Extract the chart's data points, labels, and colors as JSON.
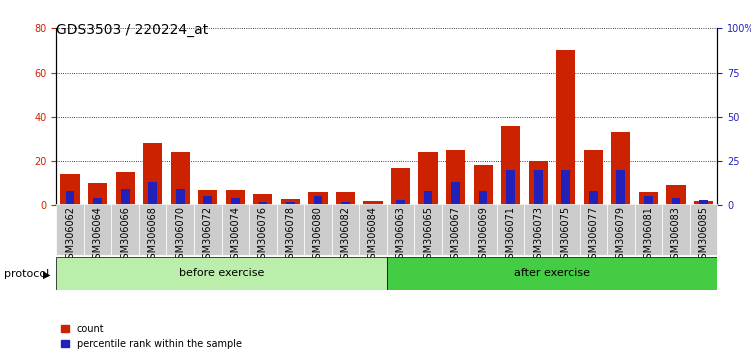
{
  "title": "GDS3503 / 220224_at",
  "categories": [
    "GSM306062",
    "GSM306064",
    "GSM306066",
    "GSM306068",
    "GSM306070",
    "GSM306072",
    "GSM306074",
    "GSM306076",
    "GSM306078",
    "GSM306080",
    "GSM306082",
    "GSM306084",
    "GSM306063",
    "GSM306065",
    "GSM306067",
    "GSM306069",
    "GSM306071",
    "GSM306073",
    "GSM306075",
    "GSM306077",
    "GSM306079",
    "GSM306081",
    "GSM306083",
    "GSM306085"
  ],
  "count_values": [
    14,
    10,
    15,
    28,
    24,
    7,
    7,
    5,
    3,
    6,
    6,
    2,
    17,
    24,
    25,
    18,
    36,
    20,
    70,
    25,
    33,
    6,
    9,
    2
  ],
  "percentile_values": [
    8,
    4,
    9,
    13,
    9,
    5,
    4,
    2,
    2,
    5,
    2,
    1,
    3,
    8,
    13,
    8,
    20,
    20,
    20,
    8,
    20,
    5,
    4,
    3
  ],
  "before_exercise_count": 12,
  "after_exercise_count": 12,
  "before_label": "before exercise",
  "after_label": "after exercise",
  "protocol_label": "protocol",
  "legend_count": "count",
  "legend_percentile": "percentile rank within the sample",
  "ylim_left": [
    0,
    80
  ],
  "ylim_right": [
    0,
    100
  ],
  "yticks_left": [
    0,
    20,
    40,
    60,
    80
  ],
  "yticks_right": [
    0,
    25,
    50,
    75,
    100
  ],
  "ytick_labels_right": [
    "0",
    "25",
    "50",
    "75",
    "100%"
  ],
  "bar_color_red": "#cc2200",
  "bar_color_blue": "#2222bb",
  "before_bg_color": "#bbeeaa",
  "after_bg_color": "#44cc44",
  "xtick_bg_color": "#cccccc",
  "bar_width": 0.7,
  "title_fontsize": 10,
  "tick_fontsize": 7,
  "label_fontsize": 8,
  "protocol_fontsize": 8,
  "left_tick_color": "#cc2200",
  "right_tick_color": "#2222bb"
}
